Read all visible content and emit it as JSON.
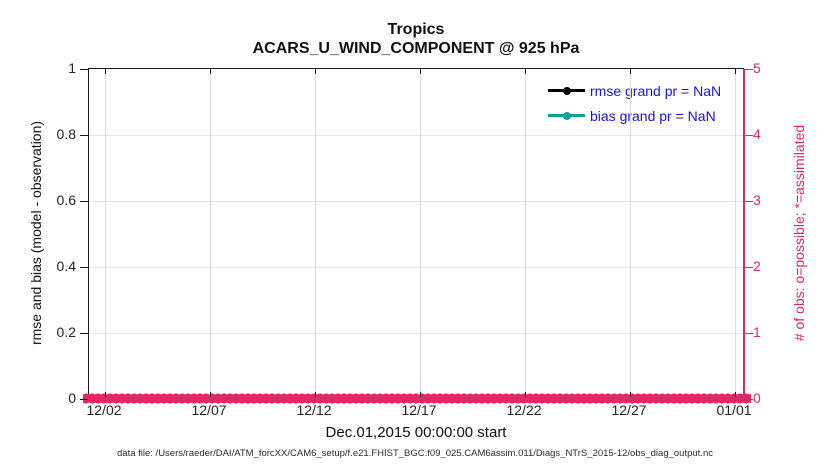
{
  "title": {
    "line1": "Tropics",
    "line2": "ACARS_U_WIND_COMPONENT @ 925 hPa"
  },
  "axes": {
    "left": {
      "label": "rmse and bias (model - observation)",
      "ticks": [
        "0",
        "0.2",
        "0.4",
        "0.6",
        "0.8",
        "1"
      ]
    },
    "right": {
      "label": "# of obs: o=possible; *=assimilated",
      "ticks": [
        "0",
        "1",
        "2",
        "3",
        "4",
        "5"
      ]
    },
    "x": {
      "label": "Dec.01,2015 00:00:00 start",
      "ticks": [
        "12/02",
        "12/07",
        "12/12",
        "12/17",
        "12/22",
        "12/27",
        "01/01"
      ]
    }
  },
  "legend": [
    {
      "label": "rmse grand pr = NaN",
      "line_color": "#000000"
    },
    {
      "label": "bias grand pr = NaN",
      "line_color": "#14a097"
    }
  ],
  "footer": "data file: /Users/raeder/DAI/ATM_forcXX/CAM6_setup/f.e21.FHIST_BGC.f09_025.CAM6assim.011/Diags_NTrS_2015-12/obs_diag_output.nc",
  "colors": {
    "obs_pink": "#dd2a66",
    "grid_gray": "#dcdcdc",
    "grid_pink": "rgba(221,42,102,0.16)",
    "legend_text_blue": "#1414e8",
    "axis_black": "#1a1a1a"
  },
  "chart_data": {
    "type": "line",
    "title": "Tropics — ACARS_U_WIND_COMPONENT @ 925 hPa",
    "x": {
      "start_label": "Dec.01,2015 00:00:00 start",
      "tick_labels": [
        "12/02",
        "12/07",
        "12/12",
        "12/17",
        "12/22",
        "12/27",
        "01/01"
      ],
      "range_days": [
        "2015-12-01",
        "2016-01-01"
      ]
    },
    "left_axis": {
      "label": "rmse and bias (model - observation)",
      "ylim": [
        0,
        1
      ],
      "tick_vals": [
        0,
        0.2,
        0.4,
        0.6,
        0.8,
        1
      ]
    },
    "right_axis": {
      "label": "# of obs: o=possible; *=assimilated",
      "ylim": [
        0,
        5
      ],
      "tick_vals": [
        0,
        1,
        2,
        3,
        4,
        5
      ]
    },
    "grid": true,
    "legend_position": "upper-right-inside, no box",
    "series": [
      {
        "name": "rmse grand pr = NaN",
        "axis": "left",
        "color": "#000000",
        "values": "all NaN — no curve drawn"
      },
      {
        "name": "bias grand pr = NaN",
        "axis": "left",
        "color": "#14a097",
        "values": "all NaN — no curve drawn"
      },
      {
        "name": "# obs possible (o markers)",
        "axis": "right",
        "color": "#dd2a66",
        "values": "0 at every time bin across full range"
      },
      {
        "name": "# obs assimilated (* markers)",
        "axis": "right",
        "color": "#dd2a66",
        "values": "0 at every time bin across full range"
      }
    ]
  }
}
